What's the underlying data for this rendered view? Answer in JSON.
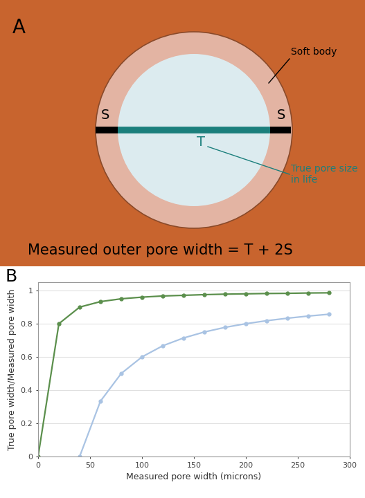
{
  "diagram": {
    "panel_label": "A",
    "soft_body_label": "Soft body",
    "s_labels": [
      "S",
      "S"
    ],
    "t_label": "T",
    "true_size_label": "True pore size in life",
    "formula": "Measured outer pore width = T + 2S"
  },
  "chart_data": {
    "type": "line",
    "title": "B",
    "x_label": "Measured pore width (microns)",
    "y_label": "True pore width/Measured pore width",
    "x": [
      0,
      20,
      40,
      60,
      80,
      100,
      120,
      140,
      160,
      180,
      200,
      220,
      240,
      260,
      280
    ],
    "series": [
      {
        "color": "#5b8f4c",
        "marker": "circle",
        "values": [
          0,
          0.8,
          0.9,
          0.933,
          0.95,
          0.96,
          0.967,
          0.971,
          0.975,
          0.978,
          0.98,
          0.982,
          0.983,
          0.985,
          0.986
        ]
      },
      {
        "color": "#a9c3e3",
        "marker": "circle",
        "values": [
          null,
          null,
          0,
          0.333,
          0.5,
          0.6,
          0.667,
          0.714,
          0.75,
          0.778,
          0.8,
          0.818,
          0.833,
          0.846,
          0.857
        ]
      }
    ],
    "xlim": [
      0,
      300
    ],
    "xticks": [
      0,
      50,
      100,
      150,
      200,
      250,
      300
    ],
    "ylim": [
      0,
      1.05
    ],
    "yticks": [
      0,
      0.2,
      0.4,
      0.6,
      0.8,
      1
    ],
    "grid": true
  }
}
